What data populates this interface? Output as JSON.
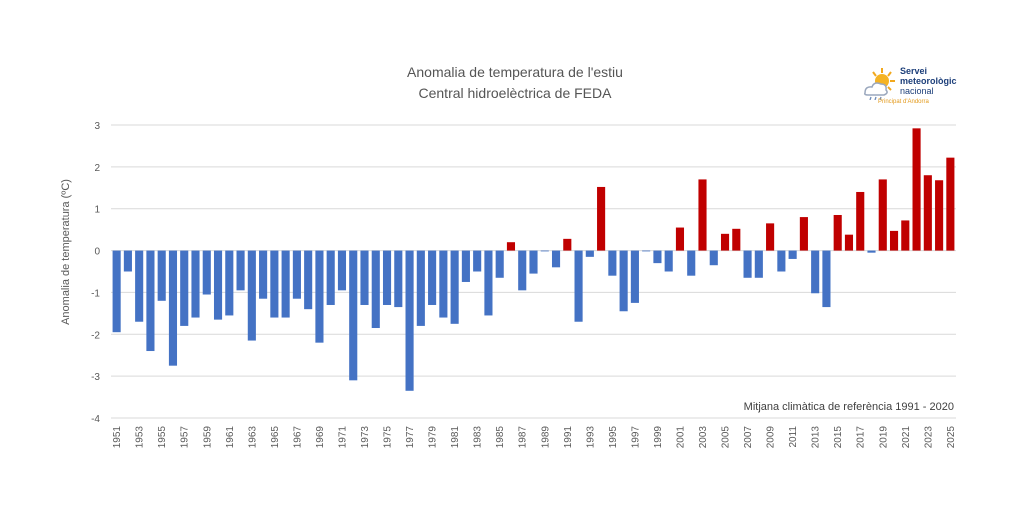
{
  "chart_data": {
    "type": "bar",
    "title": "Anomalia de temperatura de l'estiu",
    "subtitle": "Central hidroelèctrica de FEDA",
    "ylabel": "Anomalia de temperatura (ºC)",
    "xlabel": "",
    "ylim": [
      -4,
      3
    ],
    "yticks": [
      3,
      2,
      1,
      0,
      -1,
      -2,
      -3,
      -4
    ],
    "grid": true,
    "note": "Mitjana climàtica de referència 1991 - 2020",
    "colors": {
      "negative": "#4472c4",
      "positive": "#c00000",
      "grid": "#d9d9d9",
      "text": "#595959"
    },
    "x_labels": [
      "1951",
      "1953",
      "1955",
      "1957",
      "1959",
      "1961",
      "1963",
      "1965",
      "1967",
      "1969",
      "1971",
      "1973",
      "1975",
      "1977",
      "1979",
      "1981",
      "1983",
      "1985",
      "1987",
      "1989",
      "1991",
      "1993",
      "1995",
      "1997",
      "1999",
      "2001",
      "2003",
      "2005",
      "2007",
      "2009",
      "2011",
      "2013",
      "2015",
      "2017",
      "2019",
      "2021",
      "2023",
      "2025"
    ],
    "years": [
      1951,
      1952,
      1953,
      1954,
      1955,
      1956,
      1957,
      1958,
      1959,
      1960,
      1961,
      1962,
      1963,
      1964,
      1965,
      1966,
      1967,
      1968,
      1969,
      1970,
      1971,
      1972,
      1973,
      1974,
      1975,
      1976,
      1977,
      1978,
      1979,
      1980,
      1981,
      1982,
      1983,
      1984,
      1985,
      1986,
      1987,
      1988,
      1989,
      1990,
      1991,
      1992,
      1993,
      1994,
      1995,
      1996,
      1997,
      1998,
      1999,
      2000,
      2001,
      2002,
      2003,
      2004,
      2005,
      2006,
      2007,
      2008,
      2009,
      2010,
      2011,
      2012,
      2013,
      2014,
      2015,
      2016,
      2017,
      2018,
      2019,
      2020,
      2021,
      2022,
      2023,
      2024,
      2025
    ],
    "values": [
      -1.95,
      -0.5,
      -1.7,
      -2.4,
      -1.2,
      -2.75,
      -1.8,
      -1.6,
      -1.05,
      -1.65,
      -1.55,
      -0.95,
      -2.15,
      -1.15,
      -1.6,
      -1.6,
      -1.15,
      -1.4,
      -2.2,
      -1.3,
      -0.95,
      -3.1,
      -1.3,
      -1.85,
      -1.3,
      -1.35,
      -3.35,
      -1.8,
      -1.3,
      -1.6,
      -1.75,
      -0.75,
      -0.5,
      -1.55,
      -0.65,
      0.2,
      -0.95,
      -0.55,
      0.0,
      -0.4,
      0.28,
      -1.7,
      -0.15,
      1.52,
      -0.6,
      -1.45,
      -1.25,
      0.0,
      -0.3,
      -0.5,
      0.55,
      -0.6,
      1.7,
      -0.35,
      0.4,
      0.52,
      -0.65,
      -0.65,
      0.65,
      -0.5,
      -0.2,
      0.8,
      -1.02,
      -1.35,
      0.85,
      0.38,
      1.4,
      -0.05,
      1.7,
      0.47,
      0.72,
      2.92,
      1.8,
      1.68,
      2.22
    ]
  },
  "logo": {
    "line1": "Servei",
    "line2": "meteorològic",
    "line3": "nacional",
    "sub": "Principat d'Andorra",
    "icon": "sun-cloud-icon"
  }
}
